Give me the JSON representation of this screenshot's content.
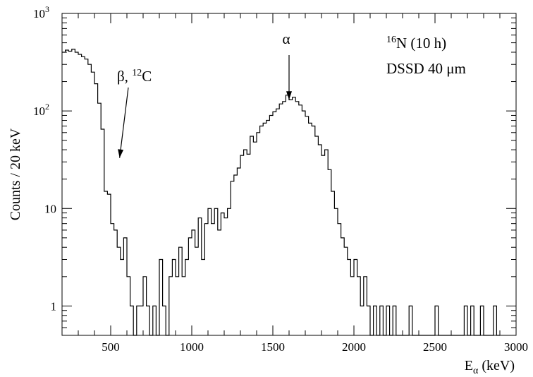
{
  "chart_data": {
    "type": "histogram",
    "xlabel": {
      "main": "E",
      "sub": "α",
      "rest": " (keV)"
    },
    "ylabel": "Counts / 20 keV",
    "xlim": [
      200,
      3000
    ],
    "ylim": [
      0.5,
      1000
    ],
    "yscale": "log",
    "bin_width": 20,
    "grid": false,
    "x_ticks": [
      500,
      1000,
      1500,
      2000,
      2500,
      3000
    ],
    "y_ticks": [
      {
        "value": 1,
        "label": "1"
      },
      {
        "value": 10,
        "label": "10"
      },
      {
        "value": 100,
        "label": "10",
        "exp": "2"
      },
      {
        "value": 1000,
        "label": "10",
        "exp": "3"
      }
    ],
    "annotations": {
      "beta_label": {
        "text_main": "β, ",
        "sup": "12",
        "text_end": "C",
        "arrow_from": [
          580,
          50
        ],
        "arrow_to": [
          555,
          33
        ]
      },
      "alpha_label": {
        "text": "α",
        "arrow_at_x": 1600,
        "arrow_to_y": 118
      },
      "source_label": {
        "sup": "16",
        "text": "N (10 h)"
      },
      "detector_label": {
        "text": "DSSD 40 μm"
      }
    },
    "bins": [
      [
        200,
        400
      ],
      [
        220,
        420
      ],
      [
        240,
        410
      ],
      [
        260,
        430
      ],
      [
        280,
        400
      ],
      [
        300,
        380
      ],
      [
        320,
        360
      ],
      [
        340,
        340
      ],
      [
        360,
        300
      ],
      [
        380,
        250
      ],
      [
        400,
        190
      ],
      [
        420,
        120
      ],
      [
        440,
        65
      ],
      [
        460,
        15
      ],
      [
        480,
        14
      ],
      [
        500,
        7
      ],
      [
        520,
        6
      ],
      [
        540,
        4
      ],
      [
        560,
        3
      ],
      [
        580,
        5
      ],
      [
        600,
        2
      ],
      [
        620,
        1
      ],
      [
        640,
        0.5
      ],
      [
        660,
        1
      ],
      [
        680,
        1
      ],
      [
        700,
        2
      ],
      [
        720,
        1
      ],
      [
        740,
        0.5
      ],
      [
        760,
        1
      ],
      [
        780,
        0.5
      ],
      [
        800,
        3
      ],
      [
        820,
        1
      ],
      [
        840,
        0.5
      ],
      [
        860,
        2
      ],
      [
        880,
        3
      ],
      [
        900,
        2
      ],
      [
        920,
        4
      ],
      [
        940,
        2
      ],
      [
        960,
        3
      ],
      [
        980,
        5
      ],
      [
        1000,
        6
      ],
      [
        1020,
        4
      ],
      [
        1040,
        8
      ],
      [
        1060,
        3
      ],
      [
        1080,
        7
      ],
      [
        1100,
        10
      ],
      [
        1120,
        7
      ],
      [
        1140,
        10
      ],
      [
        1160,
        6
      ],
      [
        1180,
        9
      ],
      [
        1200,
        8
      ],
      [
        1220,
        10
      ],
      [
        1240,
        19
      ],
      [
        1260,
        22
      ],
      [
        1280,
        26
      ],
      [
        1300,
        35
      ],
      [
        1320,
        40
      ],
      [
        1340,
        36
      ],
      [
        1360,
        55
      ],
      [
        1380,
        48
      ],
      [
        1400,
        60
      ],
      [
        1420,
        70
      ],
      [
        1440,
        75
      ],
      [
        1460,
        80
      ],
      [
        1480,
        90
      ],
      [
        1500,
        98
      ],
      [
        1520,
        105
      ],
      [
        1540,
        118
      ],
      [
        1560,
        125
      ],
      [
        1580,
        145
      ],
      [
        1600,
        130
      ],
      [
        1620,
        138
      ],
      [
        1640,
        125
      ],
      [
        1660,
        115
      ],
      [
        1680,
        100
      ],
      [
        1700,
        88
      ],
      [
        1720,
        75
      ],
      [
        1740,
        70
      ],
      [
        1760,
        55
      ],
      [
        1780,
        45
      ],
      [
        1800,
        35
      ],
      [
        1820,
        40
      ],
      [
        1840,
        25
      ],
      [
        1860,
        15
      ],
      [
        1880,
        10
      ],
      [
        1900,
        7
      ],
      [
        1920,
        5
      ],
      [
        1940,
        4
      ],
      [
        1960,
        3
      ],
      [
        1980,
        2
      ],
      [
        2000,
        3
      ],
      [
        2020,
        2
      ],
      [
        2040,
        1
      ],
      [
        2060,
        2
      ],
      [
        2080,
        1
      ],
      [
        2100,
        0.5
      ],
      [
        2120,
        1
      ],
      [
        2140,
        0.5
      ],
      [
        2160,
        1
      ],
      [
        2180,
        0.5
      ],
      [
        2200,
        1
      ],
      [
        2220,
        0.5
      ],
      [
        2240,
        1
      ],
      [
        2260,
        0.5
      ],
      [
        2340,
        1
      ],
      [
        2360,
        0.5
      ],
      [
        2500,
        1
      ],
      [
        2520,
        0.5
      ],
      [
        2680,
        1
      ],
      [
        2700,
        0.5
      ],
      [
        2720,
        1
      ],
      [
        2740,
        0.5
      ],
      [
        2780,
        1
      ],
      [
        2800,
        0.5
      ],
      [
        2860,
        1
      ],
      [
        2880,
        0.5
      ]
    ]
  }
}
